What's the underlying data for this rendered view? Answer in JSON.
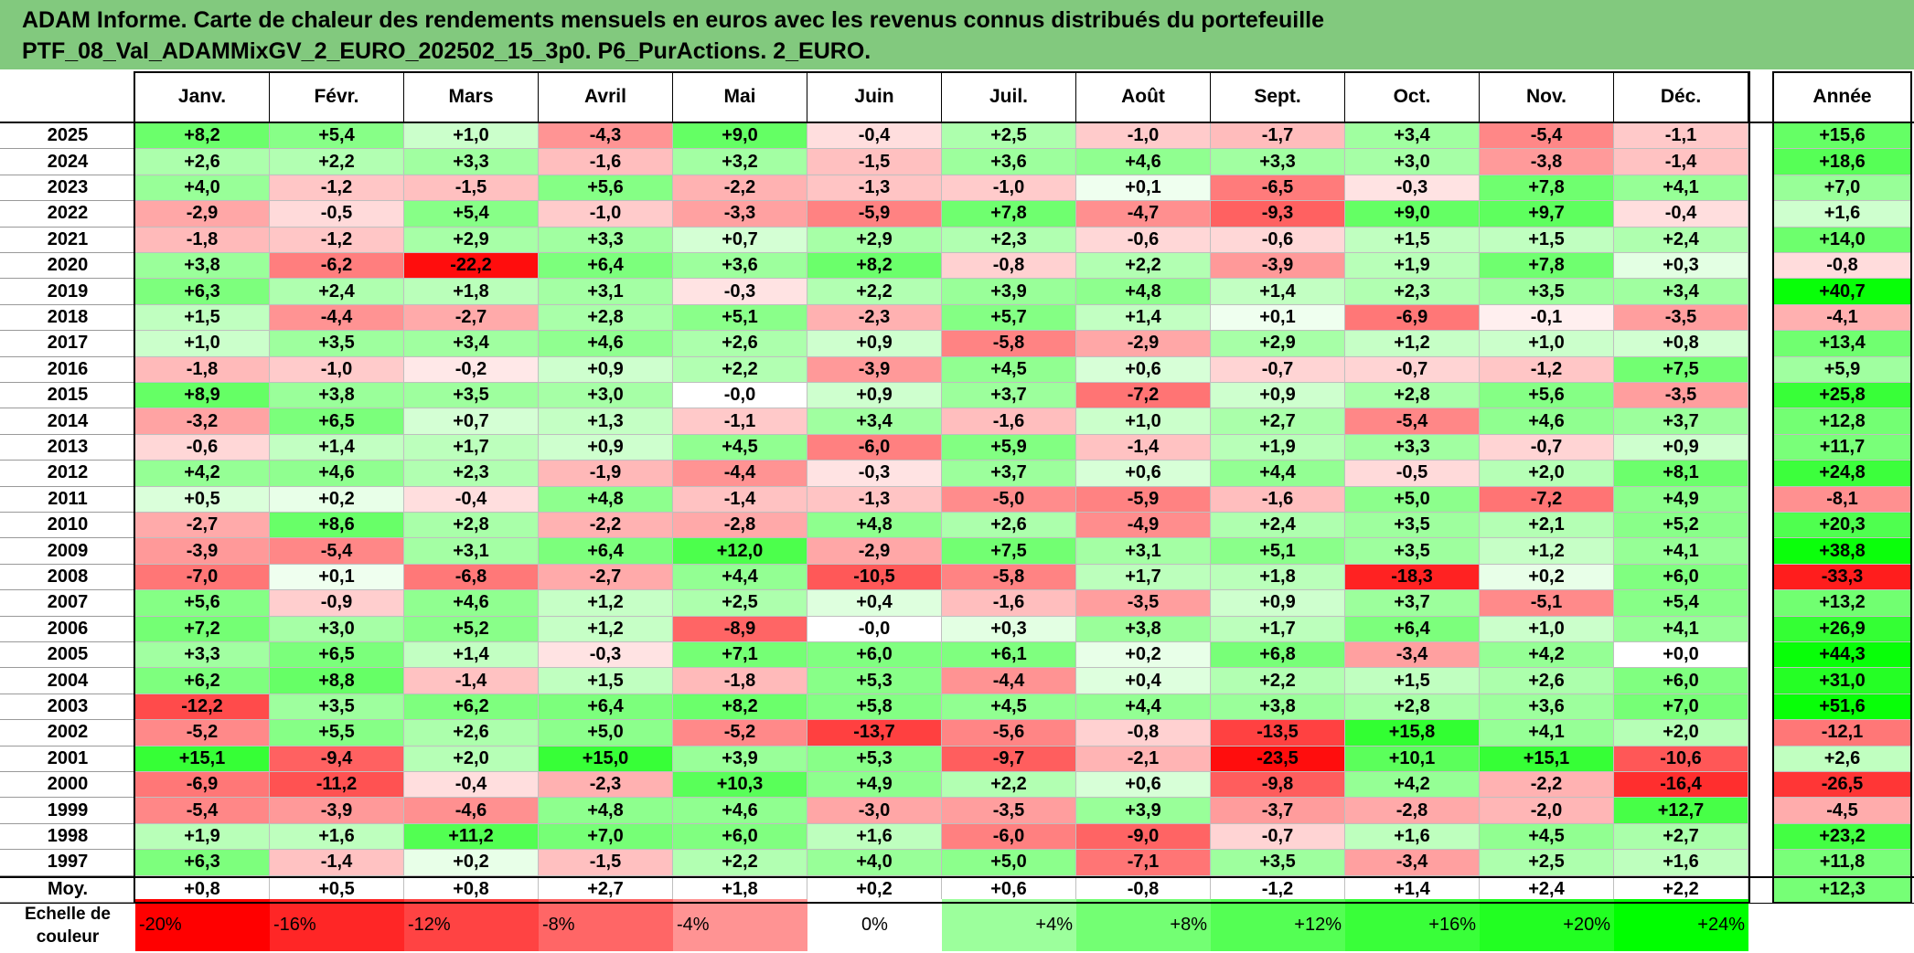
{
  "title": {
    "line1": "ADAM Informe. Carte de chaleur des rendements mensuels en euros avec les revenus connus distribués du portefeuille",
    "line2": "PTF_08_Val_ADAMMixGV_2_EURO_202502_15_3p0. P6_PurActions. 2_EURO."
  },
  "colors": {
    "title_bg": "#82c97e",
    "negative_max": "#ff0000",
    "neutral": "#ffffff",
    "positive_max": "#00ff00"
  },
  "chart_data": {
    "type": "heatmap",
    "columns": [
      "Janv.",
      "Févr.",
      "Mars",
      "Avril",
      "Mai",
      "Juin",
      "Juil.",
      "Août",
      "Sept.",
      "Oct.",
      "Nov.",
      "Déc."
    ],
    "annual_header": "Année",
    "rows": [
      {
        "year": "2025",
        "months": [
          "+8,2",
          "+5,4",
          "+1,0",
          "-4,3",
          "+9,0",
          "-0,4",
          "+2,5",
          "-1,0",
          "-1,7",
          "+3,4",
          "-5,4",
          "-1,1"
        ],
        "annual": "+15,6"
      },
      {
        "year": "2024",
        "months": [
          "+2,6",
          "+2,2",
          "+3,3",
          "-1,6",
          "+3,2",
          "-1,5",
          "+3,6",
          "+4,6",
          "+3,3",
          "+3,0",
          "-3,8",
          "-1,4"
        ],
        "annual": "+18,6"
      },
      {
        "year": "2023",
        "months": [
          "+4,0",
          "-1,2",
          "-1,5",
          "+5,6",
          "-2,2",
          "-1,3",
          "-1,0",
          "+0,1",
          "-6,5",
          "-0,3",
          "+7,8",
          "+4,1"
        ],
        "annual": "+7,0"
      },
      {
        "year": "2022",
        "months": [
          "-2,9",
          "-0,5",
          "+5,4",
          "-1,0",
          "-3,3",
          "-5,9",
          "+7,8",
          "-4,7",
          "-9,3",
          "+9,0",
          "+9,7",
          "-0,4"
        ],
        "annual": "+1,6"
      },
      {
        "year": "2021",
        "months": [
          "-1,8",
          "-1,2",
          "+2,9",
          "+3,3",
          "+0,7",
          "+2,9",
          "+2,3",
          "-0,6",
          "-0,6",
          "+1,5",
          "+1,5",
          "+2,4"
        ],
        "annual": "+14,0"
      },
      {
        "year": "2020",
        "months": [
          "+3,8",
          "-6,2",
          "-22,2",
          "+6,4",
          "+3,6",
          "+8,2",
          "-0,8",
          "+2,2",
          "-3,9",
          "+1,9",
          "+7,8",
          "+0,3"
        ],
        "annual": "-0,8"
      },
      {
        "year": "2019",
        "months": [
          "+6,3",
          "+2,4",
          "+1,8",
          "+3,1",
          "-0,3",
          "+2,2",
          "+3,9",
          "+4,8",
          "+1,4",
          "+2,3",
          "+3,5",
          "+3,4"
        ],
        "annual": "+40,7"
      },
      {
        "year": "2018",
        "months": [
          "+1,5",
          "-4,4",
          "-2,7",
          "+2,8",
          "+5,1",
          "-2,3",
          "+5,7",
          "+1,4",
          "+0,1",
          "-6,9",
          "-0,1",
          "-3,5"
        ],
        "annual": "-4,1"
      },
      {
        "year": "2017",
        "months": [
          "+1,0",
          "+3,5",
          "+3,4",
          "+4,6",
          "+2,6",
          "+0,9",
          "-5,8",
          "-2,9",
          "+2,9",
          "+1,2",
          "+1,0",
          "+0,8"
        ],
        "annual": "+13,4"
      },
      {
        "year": "2016",
        "months": [
          "-1,8",
          "-1,0",
          "-0,2",
          "+0,9",
          "+2,2",
          "-3,9",
          "+4,5",
          "+0,6",
          "-0,7",
          "-0,7",
          "-1,2",
          "+7,5"
        ],
        "annual": "+5,9"
      },
      {
        "year": "2015",
        "months": [
          "+8,9",
          "+3,8",
          "+3,5",
          "+3,0",
          "-0,0",
          "+0,9",
          "+3,7",
          "-7,2",
          "+0,9",
          "+2,8",
          "+5,6",
          "-3,5"
        ],
        "annual": "+25,8"
      },
      {
        "year": "2014",
        "months": [
          "-3,2",
          "+6,5",
          "+0,7",
          "+1,3",
          "-1,1",
          "+3,4",
          "-1,6",
          "+1,0",
          "+2,7",
          "-5,4",
          "+4,6",
          "+3,7"
        ],
        "annual": "+12,8"
      },
      {
        "year": "2013",
        "months": [
          "-0,6",
          "+1,4",
          "+1,7",
          "+0,9",
          "+4,5",
          "-6,0",
          "+5,9",
          "-1,4",
          "+1,9",
          "+3,3",
          "-0,7",
          "+0,9"
        ],
        "annual": "+11,7"
      },
      {
        "year": "2012",
        "months": [
          "+4,2",
          "+4,6",
          "+2,3",
          "-1,9",
          "-4,4",
          "-0,3",
          "+3,7",
          "+0,6",
          "+4,4",
          "-0,5",
          "+2,0",
          "+8,1"
        ],
        "annual": "+24,8"
      },
      {
        "year": "2011",
        "months": [
          "+0,5",
          "+0,2",
          "-0,4",
          "+4,8",
          "-1,4",
          "-1,3",
          "-5,0",
          "-5,9",
          "-1,6",
          "+5,0",
          "-7,2",
          "+4,9"
        ],
        "annual": "-8,1"
      },
      {
        "year": "2010",
        "months": [
          "-2,7",
          "+8,6",
          "+2,8",
          "-2,2",
          "-2,8",
          "+4,8",
          "+2,6",
          "-4,9",
          "+2,4",
          "+3,5",
          "+2,1",
          "+5,2"
        ],
        "annual": "+20,3"
      },
      {
        "year": "2009",
        "months": [
          "-3,9",
          "-5,4",
          "+3,1",
          "+6,4",
          "+12,0",
          "-2,9",
          "+7,5",
          "+3,1",
          "+5,1",
          "+3,5",
          "+1,2",
          "+4,1"
        ],
        "annual": "+38,8"
      },
      {
        "year": "2008",
        "months": [
          "-7,0",
          "+0,1",
          "-6,8",
          "-2,7",
          "+4,4",
          "-10,5",
          "-5,8",
          "+1,7",
          "+1,8",
          "-18,3",
          "+0,2",
          "+6,0"
        ],
        "annual": "-33,3"
      },
      {
        "year": "2007",
        "months": [
          "+5,6",
          "-0,9",
          "+4,6",
          "+1,2",
          "+2,5",
          "+0,4",
          "-1,6",
          "-3,5",
          "+0,9",
          "+3,7",
          "-5,1",
          "+5,4"
        ],
        "annual": "+13,2"
      },
      {
        "year": "2006",
        "months": [
          "+7,2",
          "+3,0",
          "+5,2",
          "+1,2",
          "-8,9",
          "-0,0",
          "+0,3",
          "+3,8",
          "+1,7",
          "+6,4",
          "+1,0",
          "+4,1"
        ],
        "annual": "+26,9"
      },
      {
        "year": "2005",
        "months": [
          "+3,3",
          "+6,5",
          "+1,4",
          "-0,3",
          "+7,1",
          "+6,0",
          "+6,1",
          "+0,2",
          "+6,8",
          "-3,4",
          "+4,2",
          "+0,0"
        ],
        "annual": "+44,3"
      },
      {
        "year": "2004",
        "months": [
          "+6,2",
          "+8,8",
          "-1,4",
          "+1,5",
          "-1,8",
          "+5,3",
          "-4,4",
          "+0,4",
          "+2,2",
          "+1,5",
          "+2,6",
          "+6,0"
        ],
        "annual": "+31,0"
      },
      {
        "year": "2003",
        "months": [
          "-12,2",
          "+3,5",
          "+6,2",
          "+6,4",
          "+8,2",
          "+5,8",
          "+4,5",
          "+4,4",
          "+3,8",
          "+2,8",
          "+3,6",
          "+7,0"
        ],
        "annual": "+51,6"
      },
      {
        "year": "2002",
        "months": [
          "-5,2",
          "+5,5",
          "+2,6",
          "+5,0",
          "-5,2",
          "-13,7",
          "-5,6",
          "-0,8",
          "-13,5",
          "+15,8",
          "+4,1",
          "+2,0"
        ],
        "annual": "-12,1"
      },
      {
        "year": "2001",
        "months": [
          "+15,1",
          "-9,4",
          "+2,0",
          "+15,0",
          "+3,9",
          "+5,3",
          "-9,7",
          "-2,1",
          "-23,5",
          "+10,1",
          "+15,1",
          "-10,6"
        ],
        "annual": "+2,6"
      },
      {
        "year": "2000",
        "months": [
          "-6,9",
          "-11,2",
          "-0,4",
          "-2,3",
          "+10,3",
          "+4,9",
          "+2,2",
          "+0,6",
          "-9,8",
          "+4,2",
          "-2,2",
          "-16,4"
        ],
        "annual": "-26,5"
      },
      {
        "year": "1999",
        "months": [
          "-5,4",
          "-3,9",
          "-4,6",
          "+4,8",
          "+4,6",
          "-3,0",
          "-3,5",
          "+3,9",
          "-3,7",
          "-2,8",
          "-2,0",
          "+12,7"
        ],
        "annual": "-4,5"
      },
      {
        "year": "1998",
        "months": [
          "+1,9",
          "+1,6",
          "+11,2",
          "+7,0",
          "+6,0",
          "+1,6",
          "-6,0",
          "-9,0",
          "-0,7",
          "+1,6",
          "+4,5",
          "+2,7"
        ],
        "annual": "+23,2"
      },
      {
        "year": "1997",
        "months": [
          "+6,3",
          "-1,4",
          "+0,2",
          "-1,5",
          "+2,2",
          "+4,0",
          "+5,0",
          "-7,1",
          "+3,5",
          "-3,4",
          "+2,5",
          "+1,6"
        ],
        "annual": "+11,8"
      }
    ],
    "average": {
      "label": "Moy.",
      "months": [
        "+0,8",
        "+0,5",
        "+0,8",
        "+2,7",
        "+1,8",
        "+0,2",
        "+0,6",
        "-0,8",
        "-1,2",
        "+1,4",
        "+2,4",
        "+2,2"
      ],
      "annual": "+12,3"
    },
    "color_scale": {
      "label": "Echelle de couleur",
      "steps": [
        {
          "label": "-20%",
          "value": -20
        },
        {
          "label": "-16%",
          "value": -16
        },
        {
          "label": "-12%",
          "value": -12
        },
        {
          "label": "-8%",
          "value": -8
        },
        {
          "label": "-4%",
          "value": -4
        },
        {
          "label": "0%",
          "value": 0
        },
        {
          "label": "+4%",
          "value": 4
        },
        {
          "label": "+8%",
          "value": 8
        },
        {
          "label": "+12%",
          "value": 12
        },
        {
          "label": "+16%",
          "value": 16
        },
        {
          "label": "+20%",
          "value": 20
        },
        {
          "label": "+24%",
          "value": 24
        }
      ]
    }
  }
}
